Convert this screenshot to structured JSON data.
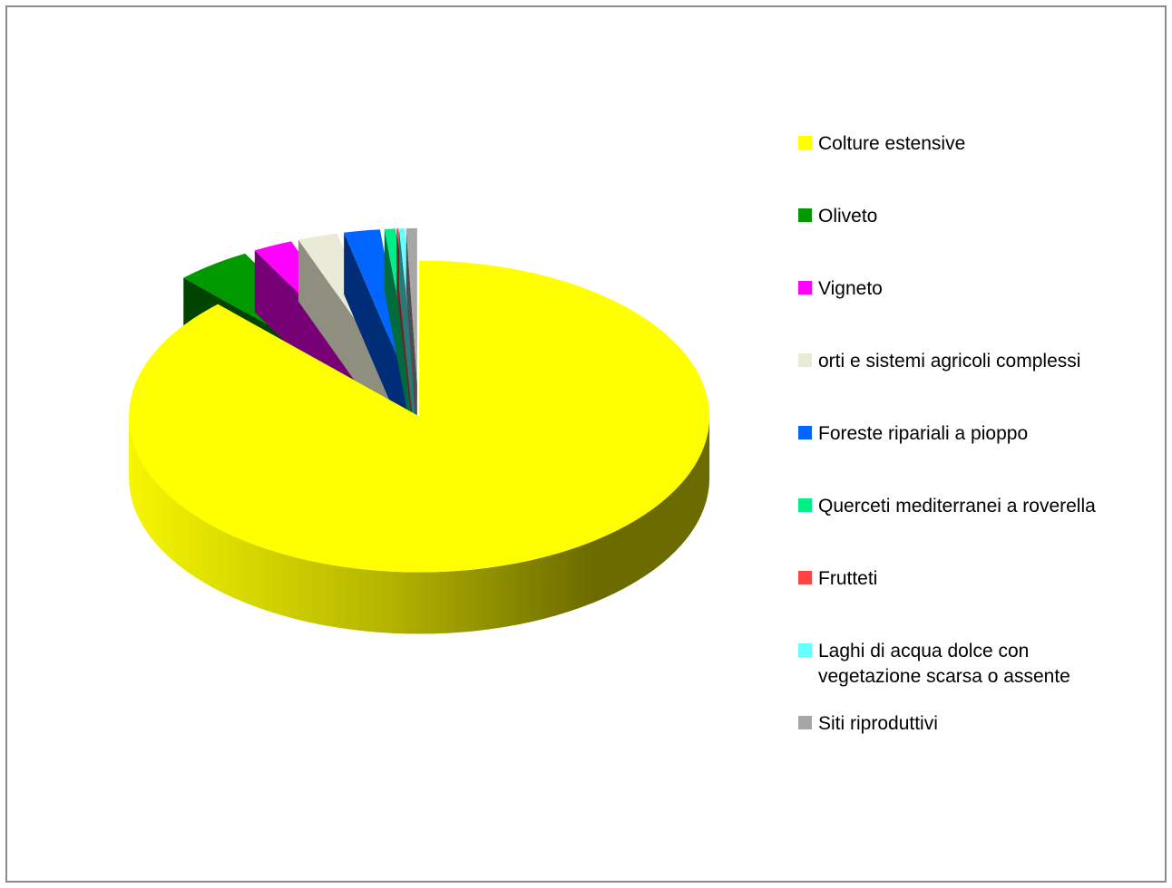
{
  "chart_data": {
    "type": "pie",
    "exploded": true,
    "three_d": true,
    "legend_position": "right",
    "categories": [
      "Colture estensive",
      "Oliveto",
      "Vigneto",
      "orti e sistemi agricoli complessi",
      "Foreste ripariali a pioppo",
      "Querceti mediterranei a roverella",
      "Frutteti",
      "Laghi di acqua dolce con vegetazione scarsa o assente",
      "Siti riproduttivi"
    ],
    "legend_lines": [
      [
        "Colture estensive"
      ],
      [
        "Oliveto"
      ],
      [
        "Vigneto"
      ],
      [
        "orti e sistemi agricoli complessi"
      ],
      [
        "Foreste ripariali a pioppo"
      ],
      [
        "Querceti mediterranei a roverella"
      ],
      [
        "Frutteti"
      ],
      [
        "Laghi di acqua dolce con",
        "vegetazione scarsa o assente"
      ],
      [
        "Siti riproduttivi"
      ]
    ],
    "values": [
      87.8,
      4.2,
      2.2,
      2.2,
      2.0,
      0.6,
      0.1,
      0.3,
      0.6
    ],
    "colors": [
      "#FFFF00",
      "#009900",
      "#FF00FF",
      "#EAEAD8",
      "#0066FF",
      "#00EE88",
      "#FF4444",
      "#66FFFF",
      "#A6A6A6"
    ],
    "side_colors": [
      "#6B6B00",
      "#004400",
      "#770077",
      "#8F8F80",
      "#002D77",
      "#006B3C",
      "#771F1F",
      "#2C7777",
      "#4D4D4D"
    ]
  }
}
